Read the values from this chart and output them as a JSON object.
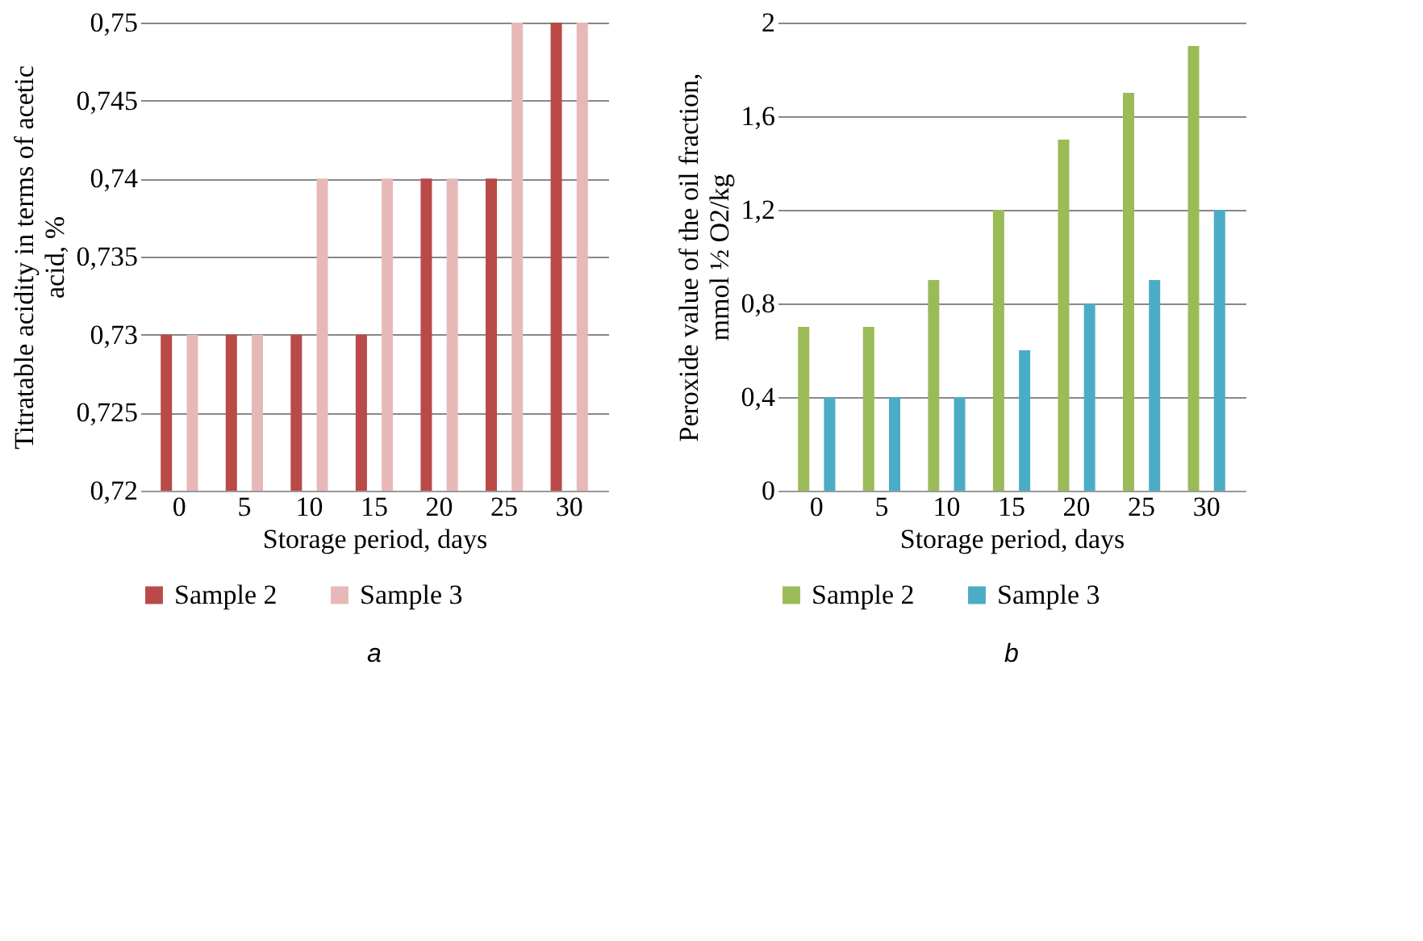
{
  "chart_data": [
    {
      "type": "bar",
      "xlabel": "Storage period, days",
      "ylabel": "Titratable acidity in terms of acetic acid, %",
      "categories": [
        "0",
        "5",
        "10",
        "15",
        "20",
        "25",
        "30"
      ],
      "series": [
        {
          "name": "Sample 2",
          "color": "#b94a48",
          "values": [
            0.73,
            0.73,
            0.73,
            0.73,
            0.74,
            0.74,
            0.75
          ]
        },
        {
          "name": "Sample 3",
          "color": "#e6b9b8",
          "values": [
            0.73,
            0.73,
            0.74,
            0.74,
            0.74,
            0.75,
            0.75
          ]
        }
      ],
      "ylim": [
        0.72,
        0.75
      ],
      "yticks": [
        {
          "value": 0.72,
          "label": "0,72"
        },
        {
          "value": 0.725,
          "label": "0,725"
        },
        {
          "value": 0.73,
          "label": "0,73"
        },
        {
          "value": 0.735,
          "label": "0,735"
        },
        {
          "value": 0.74,
          "label": "0,74"
        },
        {
          "value": 0.745,
          "label": "0,745"
        },
        {
          "value": 0.75,
          "label": "0,75"
        }
      ],
      "grid": "y",
      "legend": "bottom",
      "annotations": [
        "a"
      ]
    },
    {
      "type": "bar",
      "xlabel": "Storage period, days",
      "ylabel": "Peroxide value of the oil fraction, mmol ½ O2/kg",
      "categories": [
        "0",
        "5",
        "10",
        "15",
        "20",
        "25",
        "30"
      ],
      "series": [
        {
          "name": "Sample 2",
          "color": "#9bbb59",
          "values": [
            0.7,
            0.7,
            0.9,
            1.2,
            1.5,
            1.7,
            1.9
          ]
        },
        {
          "name": "Sample 3",
          "color": "#4bacc6",
          "values": [
            0.4,
            0.4,
            0.4,
            0.6,
            0.8,
            0.9,
            1.2
          ]
        }
      ],
      "ylim": [
        0,
        2
      ],
      "yticks": [
        0,
        {
          "value": 0.4,
          "label": "0,4"
        },
        {
          "value": 0.8,
          "label": "0,8"
        },
        {
          "value": 1.2,
          "label": "1,2"
        },
        {
          "value": 1.6,
          "label": "1,6"
        },
        2
      ],
      "grid": "y",
      "legend": "bottom",
      "annotations": [
        "b"
      ]
    }
  ]
}
